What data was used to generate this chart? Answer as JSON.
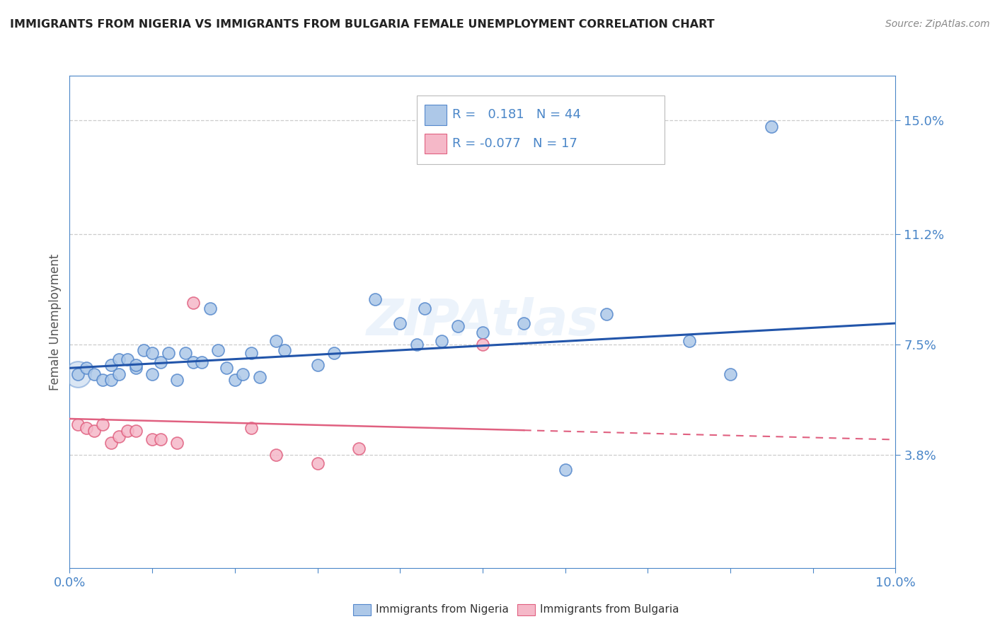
{
  "title": "IMMIGRANTS FROM NIGERIA VS IMMIGRANTS FROM BULGARIA FEMALE UNEMPLOYMENT CORRELATION CHART",
  "source": "Source: ZipAtlas.com",
  "ylabel": "Female Unemployment",
  "xlim": [
    0.0,
    0.1
  ],
  "ylim": [
    0.0,
    0.165
  ],
  "yticks": [
    0.038,
    0.075,
    0.112,
    0.15
  ],
  "ytick_labels": [
    "3.8%",
    "7.5%",
    "11.2%",
    "15.0%"
  ],
  "xticks": [
    0.0,
    0.01,
    0.02,
    0.03,
    0.04,
    0.05,
    0.06,
    0.07,
    0.08,
    0.09,
    0.1
  ],
  "nigeria_color": "#adc8e8",
  "nigeria_edge_color": "#5588cc",
  "bulgaria_color": "#f5b8c8",
  "bulgaria_edge_color": "#e06080",
  "trendline_nigeria_color": "#2255aa",
  "trendline_bulgaria_color": "#e06080",
  "nigeria_R": "0.181",
  "nigeria_N": "44",
  "bulgaria_R": "-0.077",
  "bulgaria_N": "17",
  "legend_label_nigeria": "Immigrants from Nigeria",
  "legend_label_bulgaria": "Immigrants from Bulgaria",
  "watermark": "ZIPAtlas",
  "nigeria_x": [
    0.001,
    0.002,
    0.003,
    0.004,
    0.005,
    0.005,
    0.006,
    0.006,
    0.007,
    0.008,
    0.008,
    0.009,
    0.01,
    0.01,
    0.011,
    0.012,
    0.013,
    0.014,
    0.015,
    0.016,
    0.017,
    0.018,
    0.019,
    0.02,
    0.021,
    0.022,
    0.023,
    0.025,
    0.026,
    0.03,
    0.032,
    0.037,
    0.04,
    0.042,
    0.043,
    0.045,
    0.047,
    0.05,
    0.055,
    0.06,
    0.065,
    0.075,
    0.08,
    0.085
  ],
  "nigeria_y": [
    0.065,
    0.067,
    0.065,
    0.063,
    0.068,
    0.063,
    0.065,
    0.07,
    0.07,
    0.067,
    0.068,
    0.073,
    0.072,
    0.065,
    0.069,
    0.072,
    0.063,
    0.072,
    0.069,
    0.069,
    0.087,
    0.073,
    0.067,
    0.063,
    0.065,
    0.072,
    0.064,
    0.076,
    0.073,
    0.068,
    0.072,
    0.09,
    0.082,
    0.075,
    0.087,
    0.076,
    0.081,
    0.079,
    0.082,
    0.033,
    0.085,
    0.076,
    0.065,
    0.148
  ],
  "bulgaria_x": [
    0.001,
    0.002,
    0.003,
    0.004,
    0.005,
    0.006,
    0.007,
    0.008,
    0.01,
    0.011,
    0.013,
    0.015,
    0.022,
    0.025,
    0.03,
    0.035,
    0.05
  ],
  "bulgaria_y": [
    0.048,
    0.047,
    0.046,
    0.048,
    0.042,
    0.044,
    0.046,
    0.046,
    0.043,
    0.043,
    0.042,
    0.089,
    0.047,
    0.038,
    0.035,
    0.04,
    0.075
  ],
  "nigeria_trendline_x": [
    0.0,
    0.1
  ],
  "nigeria_trendline_y": [
    0.067,
    0.082
  ],
  "bulgaria_trendline_x": [
    0.0,
    0.1
  ],
  "bulgaria_trendline_y": [
    0.05,
    0.043
  ],
  "bg_color": "#ffffff",
  "grid_color": "#cccccc",
  "axis_color": "#4a86c8",
  "title_color": "#222222"
}
